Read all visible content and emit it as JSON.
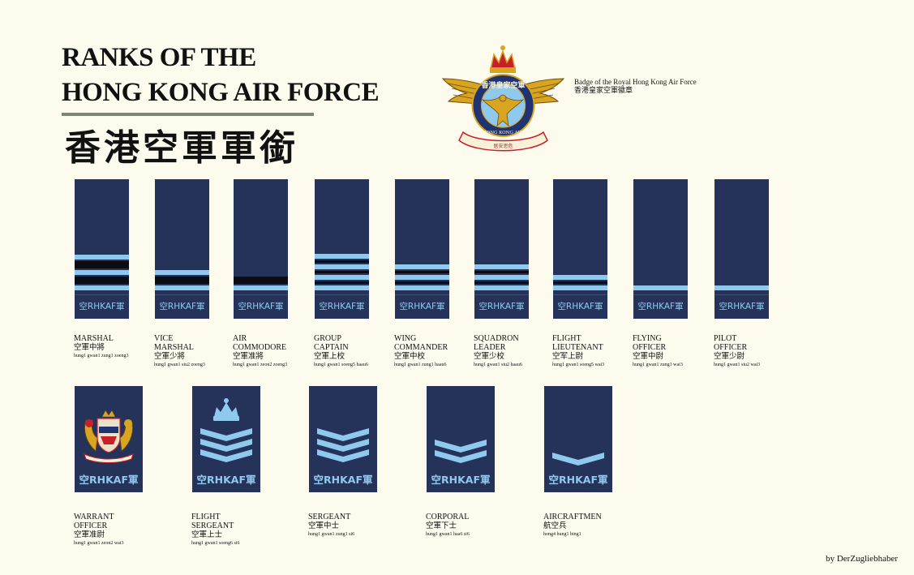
{
  "title": {
    "line1": "RANKS OF THE",
    "line2": "HONG KONG AIR FORCE",
    "chinese": "香港空軍軍銜"
  },
  "badge": {
    "caption_en": "Badge of the Royal Hong Kong Air Force",
    "caption_cn": "香港皇家空軍徽章",
    "emblem_text": "香港皇家空軍",
    "ribbon_text": "ROYAL HONG KONG AIR FORCE",
    "motto_text": "居安思危"
  },
  "plate_text": "空RHKAF軍",
  "colors": {
    "board": "#253259",
    "light_blue": "#8fc9ee",
    "black": "#0b0d13",
    "background": "#fdfbee"
  },
  "officers": [
    {
      "en1": "MARSHAL",
      "en2": "",
      "cn": "空軍中將",
      "rom": "hung1 gwan1 zung1 zoeng3",
      "stripes": [
        "light",
        "black",
        "light",
        "black",
        "light"
      ]
    },
    {
      "en1": "VICE",
      "en2": "MARSHAL",
      "cn": "空軍少將",
      "rom": "hung1 gwan1 siu2 zoeng3",
      "stripes": [
        "light",
        "black",
        "light"
      ]
    },
    {
      "en1": "AIR",
      "en2": "COMMODORE",
      "cn": "空軍准將",
      "rom": "hung1 gwan1 zeon2 zoeng3",
      "stripes": [
        "black",
        "light"
      ]
    },
    {
      "en1": "GROUP",
      "en2": "CAPTAIN",
      "cn": "空軍上校",
      "rom": "hung1 gwan1 soeng5 haau6",
      "stripes": [
        "light",
        "thin",
        "light",
        "thin",
        "light",
        "thin",
        "light"
      ]
    },
    {
      "en1": "WING",
      "en2": "COMMANDER",
      "cn": "空軍中校",
      "rom": "hung1 gwan1 zung1 haau6",
      "stripes": [
        "light",
        "thin",
        "light",
        "thin",
        "light"
      ]
    },
    {
      "en1": "SQUADRON",
      "en2": "LEADER",
      "cn": "空軍少校",
      "rom": "hung1 gwan1 siu2 haau6",
      "stripes": [
        "light",
        "thin",
        "light",
        "thin",
        "light"
      ]
    },
    {
      "en1": "FLIGHT",
      "en2": "LIEUTENANT",
      "cn": "空军上尉",
      "rom": "hung1 gwan1 soeng5 wai3",
      "stripes": [
        "light",
        "thin",
        "light"
      ]
    },
    {
      "en1": "FLYING",
      "en2": "OFFICER",
      "cn": "空軍中尉",
      "rom": "hung1 gwan1 zung1 wai3",
      "stripes": [
        "light"
      ]
    },
    {
      "en1": "PILOT",
      "en2": "OFFICER",
      "cn": "空軍少尉",
      "rom": "hung1 gwan1 siu2 wai3",
      "stripes": [
        "light"
      ]
    }
  ],
  "enlisted": [
    {
      "en1": "WARRANT",
      "en2": "OFFICER",
      "cn": "空軍准尉",
      "rom": "hung1 gwan1 zeon2 wai3",
      "insignia": "coat-of-arms"
    },
    {
      "en1": "FLIGHT",
      "en2": "SERGEANT",
      "cn": "空軍上士",
      "rom": "hung1 gwan1 soeng6 si6",
      "insignia": "crown-three-chevrons"
    },
    {
      "en1": "SERGEANT",
      "en2": "",
      "cn": "空軍中士",
      "rom": "hung1 gwan1 zung1 si6",
      "insignia": "three-chevrons"
    },
    {
      "en1": "CORPORAL",
      "en2": "",
      "cn": "空軍下士",
      "rom": "hung1 gwan1 haa6 si6",
      "insignia": "two-chevrons"
    },
    {
      "en1": "AIRCRAFTMEN",
      "en2": "",
      "cn": "航空兵",
      "rom": "hong4 hung1 bing1",
      "insignia": "one-chevron"
    }
  ],
  "credit": "by DerZugliebhaber"
}
